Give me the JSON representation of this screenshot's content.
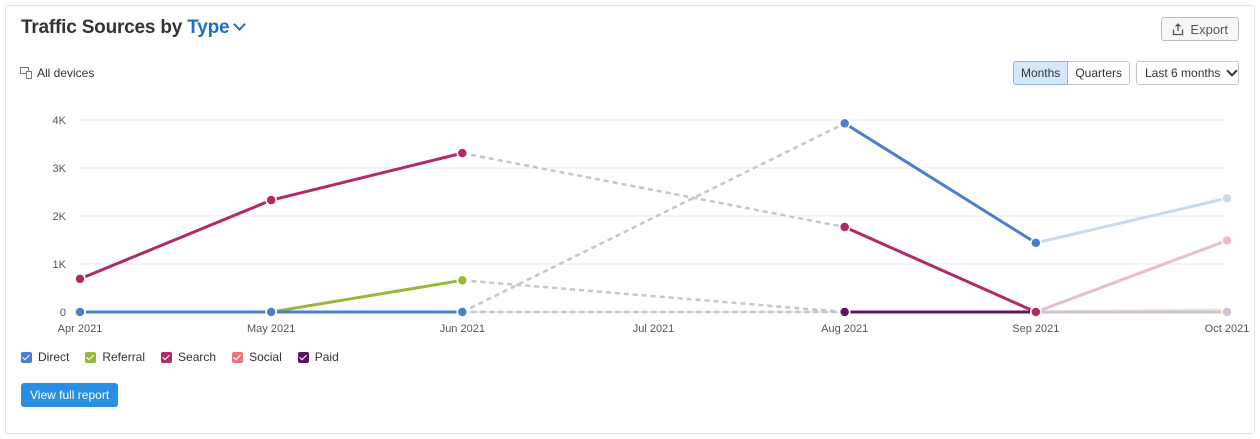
{
  "header": {
    "title_prefix": "Traffic Sources by",
    "title_selector": "Type",
    "export_label": "Export"
  },
  "filters": {
    "devices_label": "All devices",
    "granularity": [
      "Months",
      "Quarters"
    ],
    "granularity_selected": "Months",
    "range_label": "Last 6 months"
  },
  "legend": [
    {
      "label": "Direct",
      "color": "#4a7fc9"
    },
    {
      "label": "Referral",
      "color": "#98b83a"
    },
    {
      "label": "Search",
      "color": "#b02a66"
    },
    {
      "label": "Social",
      "color": "#e8767a"
    },
    {
      "label": "Paid",
      "color": "#5c1464"
    }
  ],
  "report_button_label": "View full report",
  "chart_data": {
    "type": "line",
    "x": [
      "Apr 2021",
      "May 2021",
      "Jun 2021",
      "Jul 2021",
      "Aug 2021",
      "Sep 2021",
      "Oct 2021"
    ],
    "y_ticks": [
      "0",
      "1K",
      "2K",
      "3K",
      "4K"
    ],
    "ylim": [
      0,
      4000
    ],
    "grid": true,
    "legend_position": "bottom-left",
    "gap_style": "dashed-gray",
    "partial_period_style": "faded",
    "series": [
      {
        "name": "Direct",
        "color": "#4a7fc9",
        "faded_color": "#c9d9ef",
        "values": [
          0,
          0,
          0,
          null,
          3930,
          1440,
          2370
        ]
      },
      {
        "name": "Referral",
        "color": "#98b83a",
        "faded_color": "#e6eecc",
        "values": [
          0,
          0,
          660,
          null,
          0,
          0,
          50
        ]
      },
      {
        "name": "Search",
        "color": "#b02a66",
        "faded_color": "#e8bdd2",
        "values": [
          690,
          2330,
          3310,
          null,
          1770,
          0,
          1490
        ]
      },
      {
        "name": "Social",
        "color": "#e8767a",
        "faded_color": "#f5cfd0",
        "values": [
          0,
          0,
          0,
          null,
          0,
          0,
          0
        ]
      },
      {
        "name": "Paid",
        "color": "#5c1464",
        "faded_color": "#d2c2d5",
        "values": [
          0,
          0,
          0,
          null,
          0,
          0,
          0
        ]
      }
    ]
  }
}
